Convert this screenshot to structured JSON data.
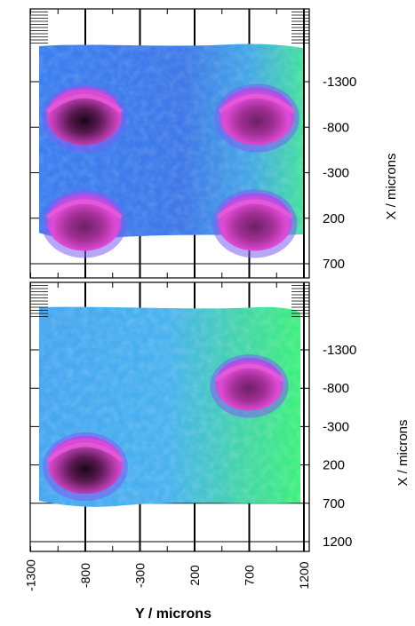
{
  "chart_data": [
    {
      "type": "heatmap",
      "xlabel": "Y / microns",
      "ylabel": "X / microns",
      "x_ticks": [
        -1300,
        -800,
        -300,
        200,
        700,
        1200
      ],
      "y_ticks": [
        -1300,
        -800,
        -300,
        200,
        700
      ],
      "xlim": [
        -1300,
        1200
      ],
      "ylim": [
        -1800,
        1000
      ],
      "grid": true,
      "colors": {
        "background": "#3f86ea",
        "low": "#3a1238",
        "mid": "#e044d6",
        "high": "#33ee88"
      },
      "features": [
        {
          "kind": "crater",
          "center": [
            -810,
            -920
          ],
          "radius": 340,
          "depth": 1.0
        },
        {
          "kind": "crater",
          "center": [
            770,
            -920
          ],
          "radius": 340,
          "depth": 0.75
        },
        {
          "kind": "crater",
          "center": [
            -810,
            240
          ],
          "radius": 340,
          "depth": 0.85
        },
        {
          "kind": "crater",
          "center": [
            750,
            240
          ],
          "radius": 340,
          "depth": 0.8
        }
      ]
    },
    {
      "type": "heatmap",
      "xlabel": "Y / microns",
      "ylabel": "X / microns",
      "x_ticks": [
        -1300,
        -800,
        -300,
        200,
        700,
        1200
      ],
      "y_ticks": [
        -1300,
        -800,
        -300,
        200,
        700,
        1200
      ],
      "xlim": [
        -1300,
        1200
      ],
      "ylim": [
        -1800,
        1250
      ],
      "grid": true,
      "colors": {
        "background": "#49a7ee",
        "low": "#2c0c2c",
        "mid": "#e044d6",
        "high": "#3bf07a"
      },
      "features": [
        {
          "kind": "crater",
          "center": [
            700,
            -850
          ],
          "radius": 310,
          "depth": 0.75
        },
        {
          "kind": "crater",
          "center": [
            -800,
            200
          ],
          "radius": 340,
          "depth": 1.0
        }
      ]
    }
  ]
}
